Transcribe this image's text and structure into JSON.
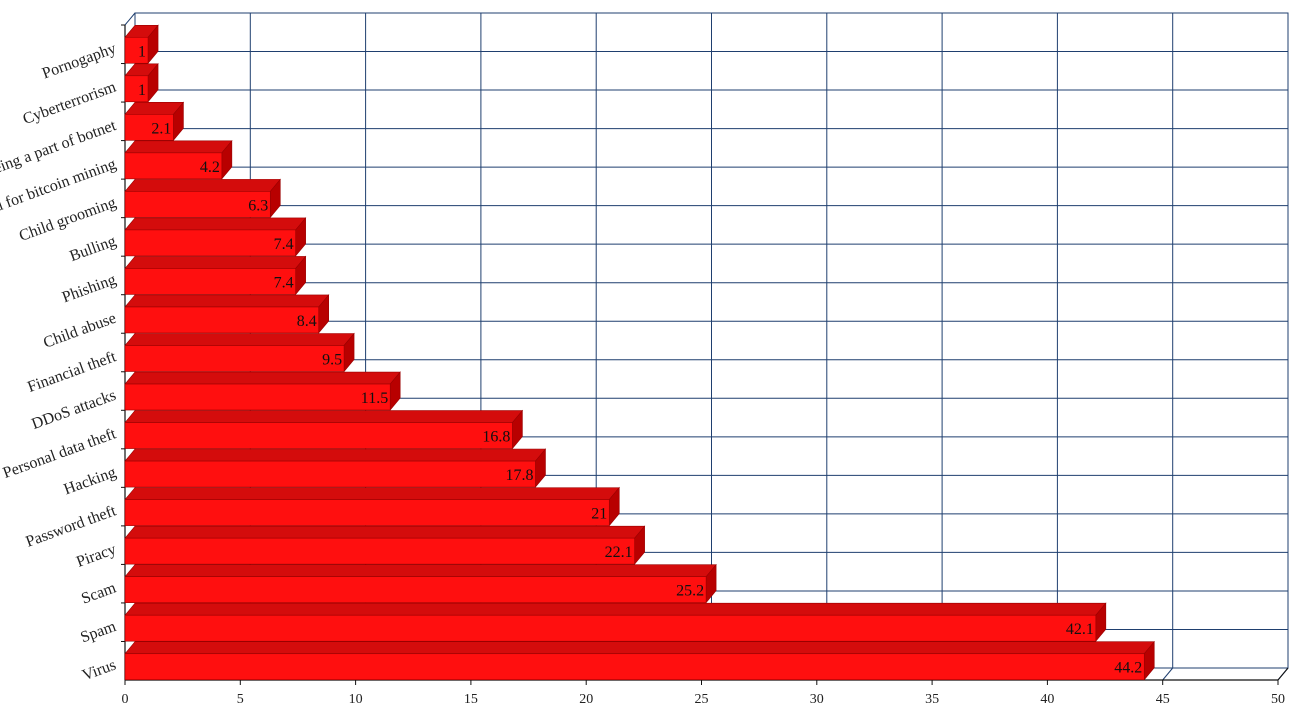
{
  "chart_data": {
    "type": "bar",
    "orientation": "horizontal",
    "style": "3d",
    "categories": [
      "Virus",
      "Spam",
      "Scam",
      "Piracy",
      "Password theft",
      "Hacking",
      "Personal data theft",
      "DDoS attacks",
      "Financial theft",
      "Child abuse",
      "Phishing",
      "Bulling",
      "Child grooming",
      "Being used for bitcoin mining",
      "Being a part of botnet",
      "Cyberterrorism",
      "Pornogaphy"
    ],
    "values": [
      44.2,
      42.1,
      25.2,
      22.1,
      21,
      17.8,
      16.8,
      11.5,
      9.5,
      8.4,
      7.4,
      7.4,
      6.3,
      4.2,
      2.1,
      1,
      1
    ],
    "value_labels": [
      "44.2",
      "42.1",
      "25.2",
      "22.1",
      "21",
      "17.8",
      "16.8",
      "11.5",
      "9.5",
      "8.4",
      "7.4",
      "7.4",
      "6.3",
      "4.2",
      "2.1",
      "1",
      "1"
    ],
    "xlim": [
      0,
      50
    ],
    "x_ticks": [
      "0",
      "5",
      "10",
      "15",
      "20",
      "25",
      "30",
      "35",
      "40",
      "45",
      "50"
    ],
    "grid": true,
    "colors": {
      "bar_front": "#ff0f0f",
      "bar_top": "#d40c0c",
      "bar_side": "#b80000",
      "grid": "#1f3f6f",
      "axis": "#111111"
    }
  }
}
